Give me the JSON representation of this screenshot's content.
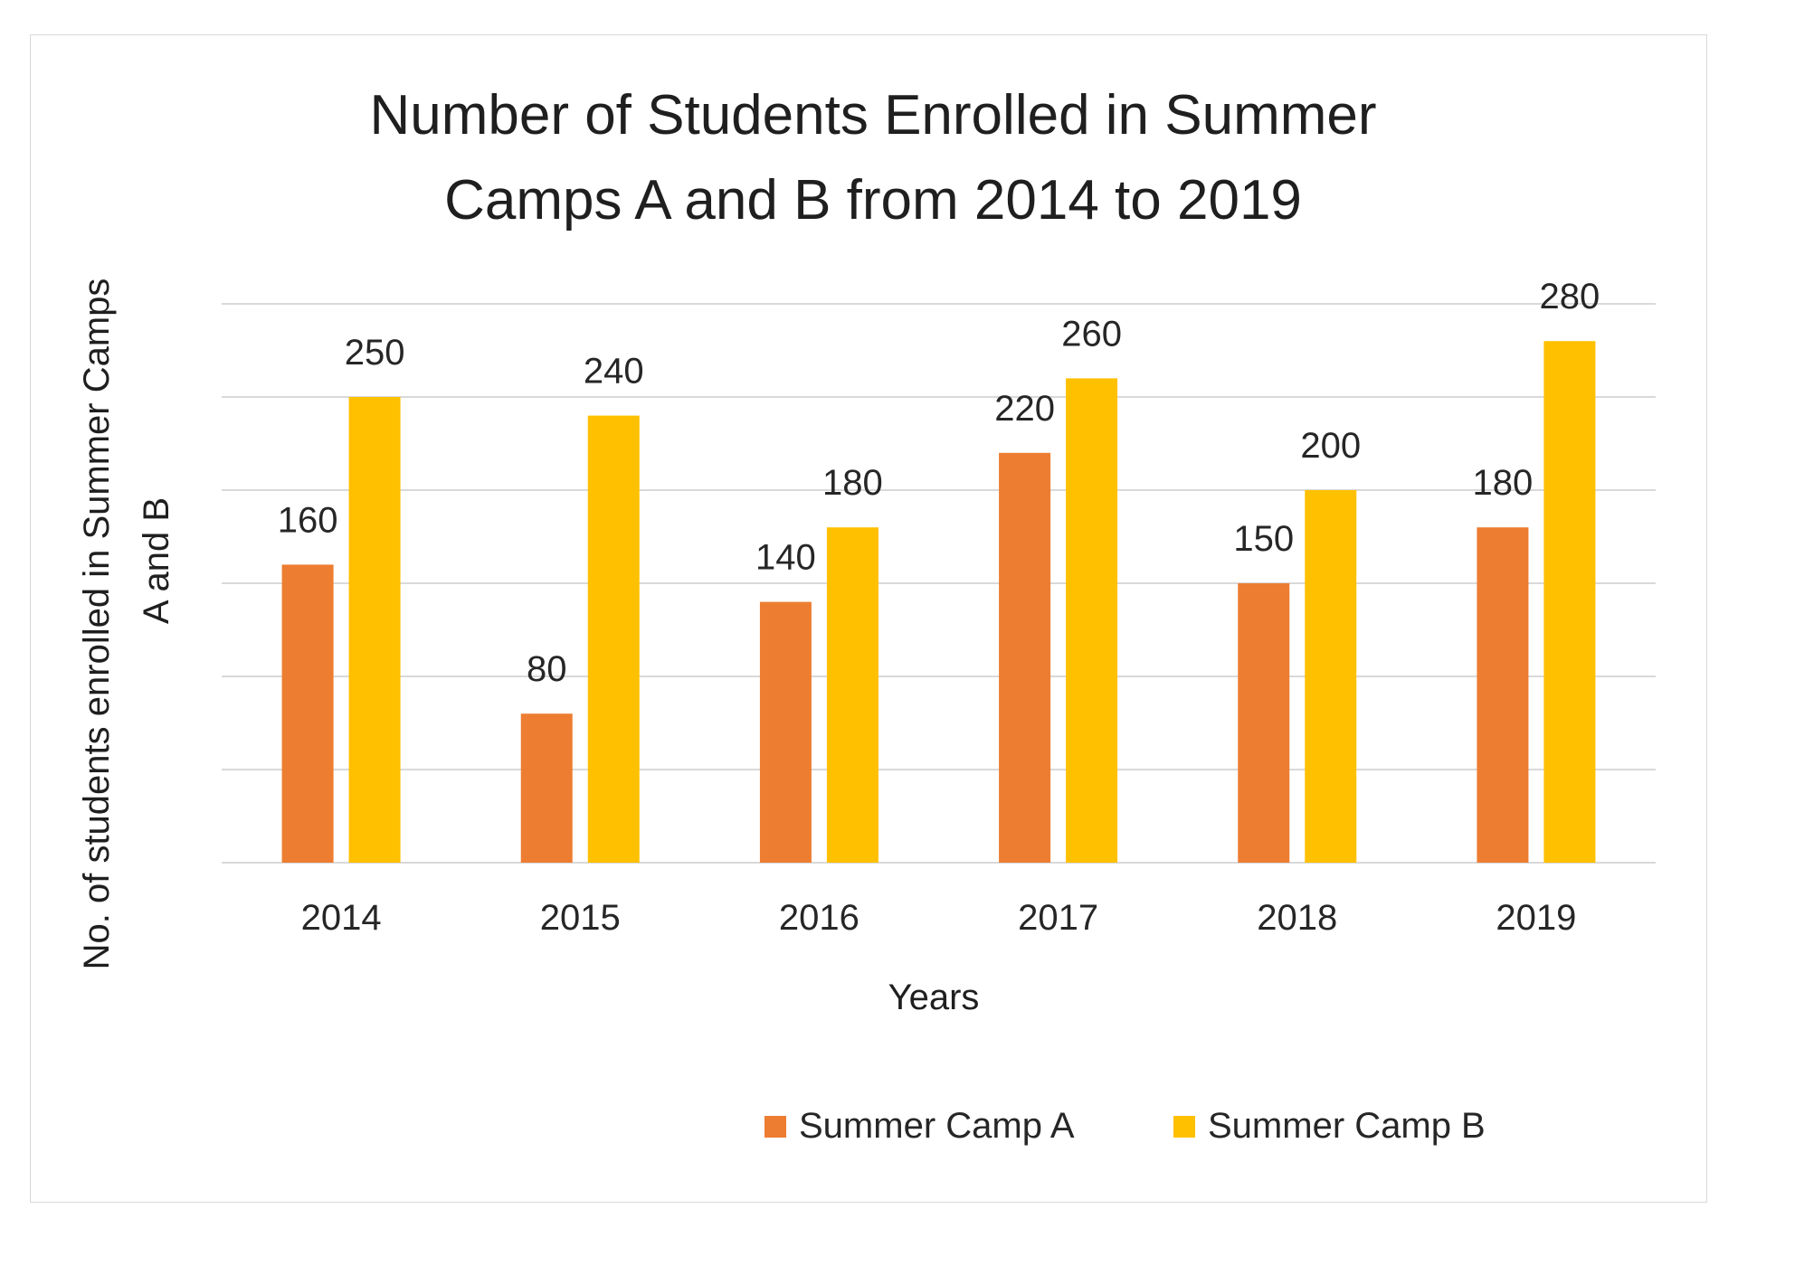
{
  "chart_data": {
    "type": "bar",
    "title_lines": [
      "Number of Students Enrolled in Summer",
      "Camps A and B from 2014 to 2019"
    ],
    "xlabel": "Years",
    "ylabel_lines": [
      "No. of students enrolled in Summer Camps",
      "A and B"
    ],
    "categories": [
      "2014",
      "2015",
      "2016",
      "2017",
      "2018",
      "2019"
    ],
    "series": [
      {
        "name": "Summer Camp A",
        "color": "#ed7d31",
        "values": [
          160,
          80,
          140,
          220,
          150,
          180
        ]
      },
      {
        "name": "Summer Camp B",
        "color": "#ffc000",
        "values": [
          250,
          240,
          180,
          260,
          200,
          280
        ]
      }
    ],
    "ylim": [
      0,
      300
    ],
    "grid": true,
    "y_tick_labels_shown": false,
    "data_labels": true,
    "legend_position": "bottom"
  }
}
